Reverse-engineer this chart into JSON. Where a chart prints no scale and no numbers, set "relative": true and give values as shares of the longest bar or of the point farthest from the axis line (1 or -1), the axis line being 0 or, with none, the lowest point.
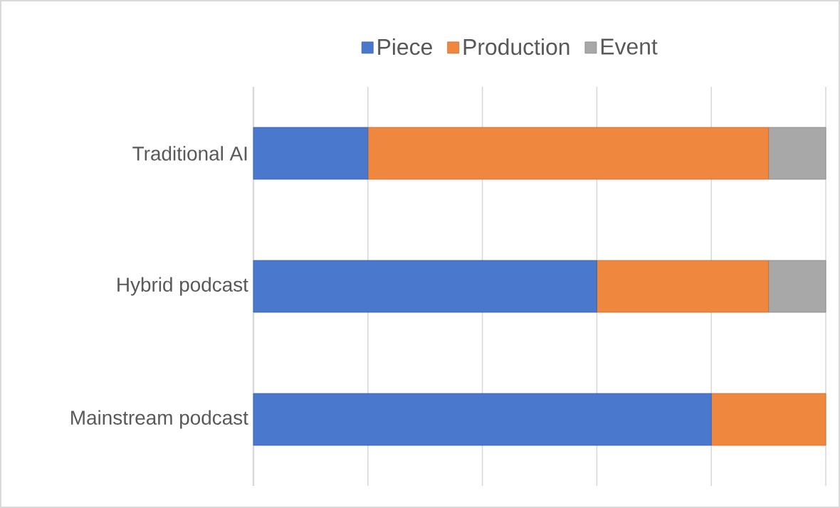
{
  "chart_data": {
    "type": "bar",
    "orientation": "horizontal",
    "stacked": true,
    "relative": true,
    "grid": "x",
    "legend": "top",
    "categories": [
      "Traditional AI",
      "Hybrid podcast",
      "Mainstream podcast"
    ],
    "series": [
      {
        "name": "Piece",
        "color": "#4a78cc",
        "values": [
          0.2,
          0.6,
          0.8
        ]
      },
      {
        "name": "Production",
        "color": "#f0873f",
        "values": [
          0.7,
          0.3,
          0.2
        ]
      },
      {
        "name": "Event",
        "color": "#a8a8a8",
        "values": [
          0.1,
          0.1,
          null
        ]
      }
    ]
  }
}
